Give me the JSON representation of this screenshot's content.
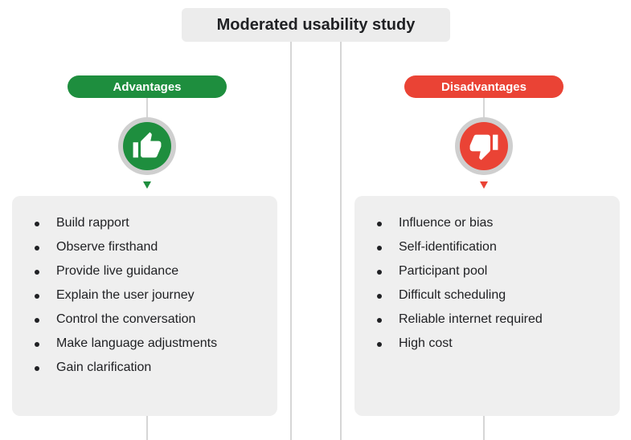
{
  "title": "Moderated usability study",
  "colors": {
    "advantage": "#1e8e3e",
    "disadvantage": "#ea4335",
    "panel_background": "#efefef",
    "title_background": "#ececec",
    "connector": "#c8c8c8"
  },
  "advantages": {
    "label": "Advantages",
    "icon": "thumbs-up-icon",
    "items": [
      "Build rapport",
      "Observe firsthand",
      "Provide live guidance",
      "Explain the user journey",
      "Control the conversation",
      "Make language adjustments",
      "Gain clarification"
    ]
  },
  "disadvantages": {
    "label": "Disadvantages",
    "icon": "thumbs-down-icon",
    "items": [
      "Influence or bias",
      "Self-identification",
      "Participant pool",
      "Difficult scheduling",
      "Reliable internet required",
      "High cost"
    ]
  }
}
